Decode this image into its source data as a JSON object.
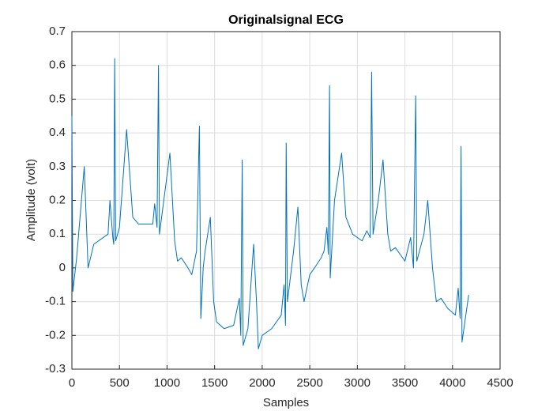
{
  "chart_data": {
    "type": "line",
    "title": "Originalsignal ECG",
    "x_label": "Samples",
    "y_label": "Amplitude (volt)",
    "grid": true,
    "xlim": [
      0,
      4500
    ],
    "xticks": [
      0,
      500,
      1000,
      1500,
      2000,
      2500,
      3000,
      3500,
      4000,
      4500
    ],
    "ylim": [
      -0.3,
      0.7
    ],
    "yticks": [
      -0.3,
      -0.2,
      -0.1,
      0,
      0.1,
      0.2,
      0.3,
      0.4,
      0.5,
      0.6,
      0.7
    ],
    "x": [
      0,
      10,
      50,
      130,
      170,
      230,
      380,
      400,
      430,
      440,
      450,
      460,
      500,
      575,
      640,
      700,
      850,
      870,
      895,
      910,
      920,
      1030,
      1080,
      1110,
      1150,
      1220,
      1260,
      1310,
      1340,
      1355,
      1380,
      1400,
      1455,
      1490,
      1520,
      1600,
      1700,
      1760,
      1775,
      1790,
      1800,
      1850,
      1910,
      1940,
      1960,
      2000,
      2100,
      2200,
      2230,
      2245,
      2252,
      2265,
      2330,
      2375,
      2410,
      2440,
      2500,
      2550,
      2620,
      2650,
      2680,
      2695,
      2708,
      2715,
      2760,
      2835,
      2880,
      2950,
      3050,
      3100,
      3135,
      3150,
      3165,
      3220,
      3270,
      3320,
      3350,
      3400,
      3500,
      3560,
      3590,
      3613,
      3625,
      3700,
      3740,
      3790,
      3830,
      3880,
      3950,
      4030,
      4060,
      4080,
      4090,
      4100,
      4130,
      4170
    ],
    "series": [
      {
        "color": "#0072bd",
        "values": [
          0.45,
          -0.07,
          0.03,
          0.3,
          0.0,
          0.07,
          0.1,
          0.2,
          0.09,
          0.07,
          0.62,
          0.08,
          0.12,
          0.41,
          0.15,
          0.13,
          0.13,
          0.19,
          0.12,
          0.6,
          0.1,
          0.34,
          0.08,
          0.02,
          0.03,
          0.0,
          -0.02,
          0.05,
          0.42,
          -0.15,
          0.0,
          0.05,
          0.15,
          -0.1,
          -0.16,
          -0.18,
          -0.17,
          -0.09,
          -0.2,
          0.32,
          -0.23,
          -0.18,
          0.07,
          -0.1,
          -0.24,
          -0.2,
          -0.18,
          -0.14,
          -0.05,
          -0.17,
          0.37,
          -0.1,
          0.05,
          0.18,
          -0.05,
          -0.1,
          -0.02,
          0.0,
          0.03,
          0.05,
          0.12,
          0.04,
          0.54,
          -0.03,
          0.2,
          0.34,
          0.15,
          0.1,
          0.08,
          0.11,
          0.09,
          0.58,
          0.1,
          0.2,
          0.32,
          0.1,
          0.05,
          0.06,
          0.02,
          0.09,
          0.0,
          0.51,
          0.02,
          0.1,
          0.2,
          0.0,
          -0.1,
          -0.09,
          -0.12,
          -0.14,
          -0.06,
          -0.15,
          0.36,
          -0.22,
          -0.16,
          -0.08
        ]
      }
    ]
  }
}
